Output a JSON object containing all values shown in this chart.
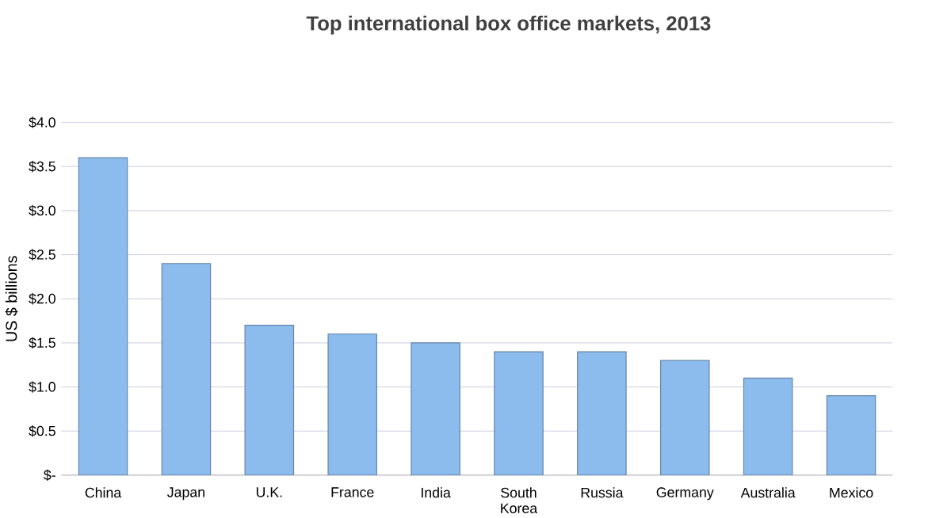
{
  "chart_data": {
    "type": "bar",
    "title": "Top international box office markets, 2013",
    "ylabel": "US $ billions",
    "categories": [
      "China",
      "Japan",
      "U.K.",
      "France",
      "India",
      "South Korea",
      "Russia",
      "Germany",
      "Australia",
      "Mexico"
    ],
    "values": [
      3.6,
      2.4,
      1.7,
      1.6,
      1.5,
      1.4,
      1.4,
      1.3,
      1.1,
      0.9
    ],
    "color": "#8cbcee",
    "ylim": [
      0,
      4
    ],
    "yticks": [
      {
        "value": 0,
        "label": "$-"
      },
      {
        "value": 0.5,
        "label": "$0.5"
      },
      {
        "value": 1,
        "label": "$1.0"
      },
      {
        "value": 1.5,
        "label": "$1.5"
      },
      {
        "value": 2,
        "label": "$2.0"
      },
      {
        "value": 2.5,
        "label": "$2.5"
      },
      {
        "value": 3,
        "label": "$3.0"
      },
      {
        "value": 3.5,
        "label": "$3.5"
      },
      {
        "value": 4,
        "label": "$4.0"
      }
    ],
    "grid": "y"
  }
}
